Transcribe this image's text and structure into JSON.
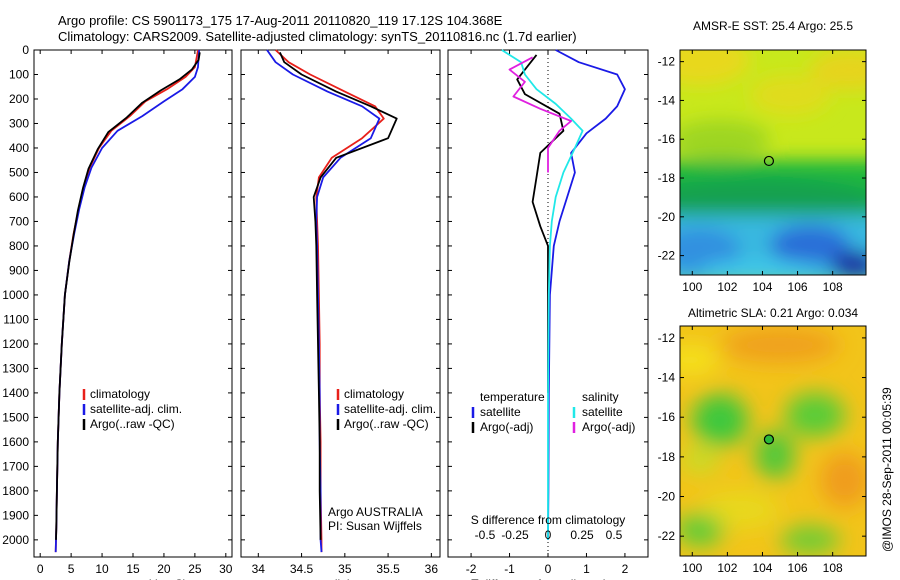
{
  "header": {
    "line1": "Argo profile: CS 5901173_175 17-Aug-2011 20110820_119 17.12S 104.368E",
    "line2": "Climatology: CARS2009. Satellite-adjusted climatology: synTS_20110816.nc (1.7d earlier)"
  },
  "colors": {
    "climatology": "#e8201a",
    "satellite": "#1a1ae6",
    "argo": "#000000",
    "argo_salinity": "#e020e0",
    "satellite_salinity": "#20e8e8"
  },
  "watermark": "@IMOS 28-Sep-2011 00:05:39",
  "chart_data": [
    {
      "type": "line",
      "panel": "temperature",
      "xlabel": "temperature (deg C)",
      "ylabel": "",
      "xlim": [
        -1,
        31
      ],
      "ylim": [
        2070,
        0
      ],
      "y_inverted": true,
      "xticks": [
        0,
        5,
        10,
        15,
        20,
        25,
        30
      ],
      "yticks": [
        0,
        100,
        200,
        300,
        400,
        500,
        600,
        700,
        800,
        900,
        1000,
        1100,
        1200,
        1300,
        1400,
        1500,
        1600,
        1700,
        1800,
        1900,
        2000
      ],
      "legend": {
        "placement": "lower-middle",
        "entries": [
          "climatology",
          "satellite-adj. clim.",
          "Argo(..raw -QC)"
        ]
      },
      "series": [
        {
          "name": "climatology",
          "color_key": "climatology",
          "x": [
            25.5,
            25.3,
            25.0,
            23.5,
            20.5,
            17.0,
            14.5,
            11.5,
            9.5,
            8.0,
            7.0,
            6.2,
            5.4,
            4.7,
            4.0,
            3.5,
            3.1,
            2.85,
            2.7,
            2.6,
            2.55,
            2.5
          ],
          "y": [
            0,
            30,
            70,
            110,
            160,
            210,
            270,
            330,
            400,
            480,
            560,
            650,
            750,
            860,
            1000,
            1200,
            1400,
            1600,
            1800,
            1950,
            2000,
            2050
          ]
        },
        {
          "name": "satellite-adj. clim.",
          "color_key": "satellite",
          "x": [
            25.7,
            25.6,
            25.5,
            25.0,
            23.0,
            20.0,
            16.5,
            12.5,
            10.0,
            8.3,
            7.2,
            6.3,
            5.5,
            4.7,
            4.0,
            3.5,
            3.1,
            2.85,
            2.7,
            2.6,
            2.55,
            2.5
          ],
          "y": [
            0,
            30,
            70,
            110,
            160,
            210,
            270,
            330,
            400,
            480,
            560,
            650,
            750,
            860,
            1000,
            1200,
            1400,
            1600,
            1800,
            1950,
            2000,
            2050
          ]
        },
        {
          "name": "Argo(..raw -QC)",
          "color_key": "argo",
          "x": [
            25.8,
            25.6,
            24.5,
            22.5,
            19.5,
            16.5,
            14.0,
            11.0,
            9.3,
            7.8,
            6.9,
            6.1,
            5.4,
            4.7,
            4.0,
            3.5,
            3.1,
            2.85,
            2.7,
            2.6,
            2.55
          ],
          "y": [
            10,
            40,
            80,
            120,
            165,
            215,
            275,
            335,
            405,
            485,
            565,
            655,
            755,
            865,
            1000,
            1200,
            1400,
            1600,
            1800,
            1950,
            2000
          ]
        }
      ]
    },
    {
      "type": "line",
      "panel": "salinity",
      "xlabel": "salinity",
      "ylabel": "",
      "xlim": [
        33.8,
        36.1
      ],
      "ylim": [
        2070,
        0
      ],
      "y_inverted": true,
      "xticks": [
        34,
        34.5,
        35,
        35.5,
        36
      ],
      "legend": {
        "placement": "lower-middle",
        "entries": [
          "climatology",
          "satellite-adj. clim.",
          "Argo(..raw -QC)"
        ]
      },
      "annotations": [
        "Argo AUSTRALIA",
        "PI: Susan Wijffels"
      ],
      "series": [
        {
          "name": "climatology",
          "color_key": "climatology",
          "x": [
            34.2,
            34.35,
            34.6,
            35.0,
            35.35,
            35.45,
            35.2,
            34.85,
            34.7,
            34.67,
            34.68,
            34.69,
            34.7,
            34.71,
            34.71,
            34.72,
            34.72,
            34.73,
            34.73
          ],
          "y": [
            0,
            50,
            100,
            170,
            230,
            280,
            360,
            440,
            520,
            600,
            700,
            800,
            1000,
            1200,
            1400,
            1600,
            1800,
            2000,
            2050
          ]
        },
        {
          "name": "satellite-adj. clim.",
          "color_key": "satellite",
          "x": [
            34.1,
            34.2,
            34.4,
            34.8,
            35.2,
            35.4,
            35.3,
            34.95,
            34.75,
            34.68,
            34.67,
            34.68,
            34.69,
            34.7,
            34.71,
            34.71,
            34.72,
            34.72,
            34.73
          ],
          "y": [
            0,
            50,
            100,
            170,
            230,
            280,
            360,
            440,
            520,
            600,
            700,
            800,
            1000,
            1200,
            1400,
            1600,
            1800,
            2000,
            2050
          ]
        },
        {
          "name": "Argo(..raw -QC)",
          "color_key": "argo",
          "x": [
            34.25,
            34.3,
            34.5,
            34.9,
            35.3,
            35.6,
            35.5,
            34.9,
            34.72,
            34.64,
            34.66,
            34.67,
            34.68,
            34.69,
            34.7,
            34.71,
            34.71,
            34.72
          ],
          "y": [
            10,
            50,
            100,
            170,
            230,
            280,
            360,
            440,
            520,
            600,
            700,
            800,
            1000,
            1200,
            1400,
            1600,
            1800,
            2000
          ]
        }
      ]
    },
    {
      "type": "line",
      "panel": "differences",
      "xlabel": "T difference from climatology",
      "xlabel_top": "S difference from climatology",
      "xlim": [
        -2.6,
        2.6
      ],
      "ylim": [
        2070,
        0
      ],
      "y_inverted": true,
      "xticks": [
        -2,
        -1,
        0,
        1,
        2
      ],
      "xticks_top": [
        "-0.5",
        "-0.25",
        "0",
        "0.25",
        "0.5"
      ],
      "legend": {
        "placement": "lower-middle",
        "temperature_title": "temperature",
        "salinity_title": "salinity",
        "temperature_entries": [
          "satellite",
          "Argo(-adj)"
        ],
        "salinity_entries": [
          "satellite",
          "Argo(-adj)"
        ]
      },
      "series": [
        {
          "name": "satellite",
          "group": "temperature",
          "color_key": "satellite",
          "x": [
            0.2,
            0.8,
            1.8,
            2.0,
            1.8,
            1.5,
            1.0,
            0.6,
            0.7,
            0.5,
            0.3,
            0.15,
            0.05,
            0.02,
            0.01,
            0.0
          ],
          "y": [
            0,
            50,
            100,
            160,
            230,
            280,
            340,
            420,
            500,
            600,
            700,
            800,
            1000,
            1400,
            1800,
            2000
          ]
        },
        {
          "name": "Argo(-adj)",
          "group": "temperature",
          "color_key": "argo",
          "x": [
            -0.3,
            -0.5,
            -0.8,
            -0.6,
            0.3,
            0.4,
            -0.2,
            -0.3,
            -0.4,
            -0.2,
            0.0,
            0.0,
            0.0
          ],
          "y": [
            20,
            60,
            120,
            180,
            260,
            330,
            420,
            520,
            620,
            720,
            800,
            1000,
            1400
          ]
        },
        {
          "name": "satellite",
          "group": "salinity",
          "color_key": "satellite_salinity",
          "x": [
            -1.2,
            -0.7,
            -0.6,
            -0.3,
            0.2,
            0.6,
            0.9,
            0.7,
            0.4,
            0.2,
            0.1,
            0.05,
            0.02,
            0.0,
            0.0
          ],
          "y": [
            0,
            50,
            100,
            160,
            220,
            280,
            330,
            400,
            500,
            600,
            700,
            800,
            1000,
            1400,
            2000
          ]
        },
        {
          "name": "Argo(-adj)",
          "group": "salinity",
          "color_key": "argo_salinity",
          "x": [
            -0.4,
            -1.0,
            -0.6,
            -0.9,
            -0.2,
            0.6,
            0.3,
            0.0,
            0.0
          ],
          "y": [
            30,
            80,
            130,
            190,
            240,
            290,
            330,
            400,
            500
          ]
        }
      ]
    },
    {
      "type": "heatmap",
      "panel": "sst-map",
      "title": "AMSR-E SST: 25.4 Argo: 25.5",
      "xlim": [
        99.3,
        109.9
      ],
      "ylim": [
        -23.0,
        -11.4
      ],
      "xticks": [
        100,
        102,
        104,
        106,
        108
      ],
      "yticks": [
        -12,
        -14,
        -16,
        -18,
        -20,
        -22
      ],
      "marker": {
        "lon": 104.368,
        "lat": -17.12
      }
    },
    {
      "type": "heatmap",
      "panel": "sla-map",
      "title": "Altimetric SLA: 0.21 Argo: 0.034",
      "xlim": [
        99.3,
        109.9
      ],
      "ylim": [
        -23.0,
        -11.4
      ],
      "xticks": [
        100,
        102,
        104,
        106,
        108
      ],
      "yticks": [
        -12,
        -14,
        -16,
        -18,
        -20,
        -22
      ],
      "marker": {
        "lon": 104.368,
        "lat": -17.12
      }
    }
  ]
}
